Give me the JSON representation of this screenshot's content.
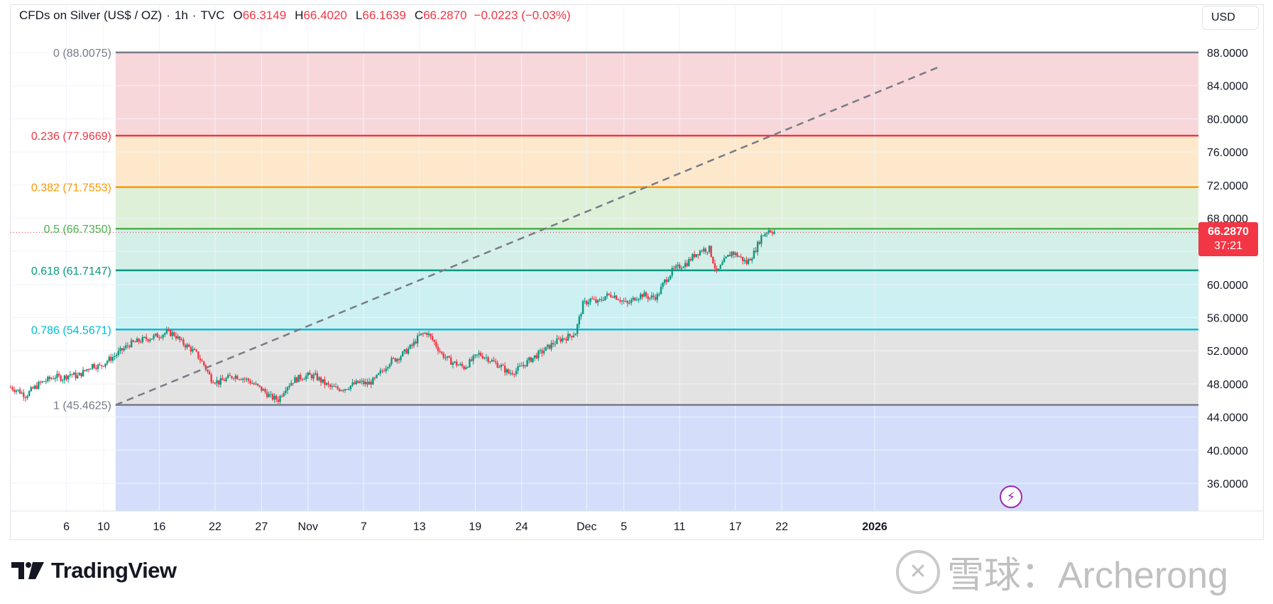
{
  "header": {
    "symbol": "CFDs on Silver (US$ / OZ)",
    "sep1": "·",
    "interval": "1h",
    "sep2": "·",
    "source": "TVC",
    "open_label": "O",
    "open": "66.3149",
    "high_label": "H",
    "high": "66.4020",
    "low_label": "L",
    "low": "66.1639",
    "close_label": "C",
    "close": "66.2870",
    "change": "−0.0223 (−0.03%)"
  },
  "currency_button": "USD",
  "price_tag": {
    "price": "66.2870",
    "countdown": "37:21"
  },
  "branding": {
    "logo_text": "TradingView",
    "watermark": "雪球：Archerong"
  },
  "colors": {
    "down": "#f23645",
    "up": "#089981",
    "trendline": "#787b86"
  },
  "chart_data": {
    "type": "candlestick",
    "title": "CFDs on Silver (US$ / OZ) · 1h · TVC",
    "y_axis": {
      "min": 33.0,
      "max": 90.0,
      "ticks": [
        "88.0000",
        "84.0000",
        "80.0000",
        "76.0000",
        "72.0000",
        "68.0000",
        "64.0000",
        "60.0000",
        "56.0000",
        "52.0000",
        "48.0000",
        "44.0000",
        "40.0000",
        "36.0000"
      ],
      "tick_values": [
        88,
        84,
        80,
        76,
        72,
        68,
        64,
        60,
        56,
        52,
        48,
        44,
        40,
        36
      ]
    },
    "x_axis": {
      "range": [
        0,
        128
      ],
      "labels": [
        {
          "text": "6",
          "x": 6
        },
        {
          "text": "10",
          "x": 10
        },
        {
          "text": "16",
          "x": 16
        },
        {
          "text": "22",
          "x": 22
        },
        {
          "text": "27",
          "x": 27
        },
        {
          "text": "Nov",
          "x": 32
        },
        {
          "text": "7",
          "x": 38
        },
        {
          "text": "13",
          "x": 44
        },
        {
          "text": "19",
          "x": 50
        },
        {
          "text": "24",
          "x": 55
        },
        {
          "text": "Dec",
          "x": 62
        },
        {
          "text": "5",
          "x": 66
        },
        {
          "text": "11",
          "x": 72
        },
        {
          "text": "17",
          "x": 78
        },
        {
          "text": "22",
          "x": 83
        },
        {
          "text": "2026",
          "x": 93
        }
      ]
    },
    "fibonacci": {
      "x_start": 11.3,
      "levels": [
        {
          "ratio": "0",
          "price": 88.0075,
          "label": "0 (88.0075)",
          "color": "#787b86",
          "fill": "#f8d7da"
        },
        {
          "ratio": "0.236",
          "price": 77.9669,
          "label": "0.236 (77.9669)",
          "color": "#f23645",
          "fill": "#fde8cc"
        },
        {
          "ratio": "0.382",
          "price": 71.7553,
          "label": "0.382 (71.7553)",
          "color": "#ff9800",
          "fill": "#dff0d8"
        },
        {
          "ratio": "0.5",
          "price": 66.735,
          "label": "0.5 (66.7350)",
          "color": "#4caf50",
          "fill": "#d3efe8"
        },
        {
          "ratio": "0.618",
          "price": 61.7147,
          "label": "0.618 (61.7147)",
          "color": "#089981",
          "fill": "#cdf0f3"
        },
        {
          "ratio": "0.786",
          "price": 54.5671,
          "label": "0.786 (54.5671)",
          "color": "#00bcd4",
          "fill": "#e3e3e3"
        },
        {
          "ratio": "1",
          "price": 45.4625,
          "label": "1 (45.4625)",
          "color": "#787b86",
          "fill": "#d4defa"
        }
      ]
    },
    "trendline": {
      "start": [
        11.3,
        45.46
      ],
      "end": [
        100,
        86.3
      ],
      "style": "dashed"
    },
    "close_points": [
      [
        0,
        47.6
      ],
      [
        0.8,
        47.2
      ],
      [
        1.6,
        46.6
      ],
      [
        2.4,
        47.4
      ],
      [
        3.2,
        48.1
      ],
      [
        4.0,
        48.5
      ],
      [
        4.8,
        48.9
      ],
      [
        5.6,
        48.7
      ],
      [
        6.4,
        49.2
      ],
      [
        7.2,
        48.9
      ],
      [
        8.0,
        49.6
      ],
      [
        8.8,
        50.3
      ],
      [
        9.6,
        50.1
      ],
      [
        10.4,
        50.8
      ],
      [
        11.2,
        51.4
      ],
      [
        12.0,
        52.1
      ],
      [
        12.8,
        52.8
      ],
      [
        13.6,
        53.1
      ],
      [
        14.4,
        53.4
      ],
      [
        15.2,
        53.6
      ],
      [
        16.0,
        53.9
      ],
      [
        16.8,
        54.2
      ],
      [
        17.6,
        54.0
      ],
      [
        18.4,
        53.0
      ],
      [
        19.2,
        52.4
      ],
      [
        20.0,
        51.6
      ],
      [
        20.8,
        50.3
      ],
      [
        21.6,
        48.6
      ],
      [
        22.4,
        48.2
      ],
      [
        23.2,
        48.6
      ],
      [
        24.0,
        49.0
      ],
      [
        24.8,
        48.8
      ],
      [
        25.6,
        48.4
      ],
      [
        26.4,
        47.8
      ],
      [
        27.2,
        47.2
      ],
      [
        28.0,
        46.4
      ],
      [
        28.8,
        46.1
      ],
      [
        29.6,
        47.6
      ],
      [
        30.4,
        48.4
      ],
      [
        31.2,
        48.8
      ],
      [
        32.0,
        49.0
      ],
      [
        32.8,
        48.9
      ],
      [
        33.6,
        48.2
      ],
      [
        34.4,
        47.6
      ],
      [
        35.2,
        47.4
      ],
      [
        36.0,
        47.5
      ],
      [
        36.8,
        47.9
      ],
      [
        37.6,
        48.2
      ],
      [
        38.4,
        48.0
      ],
      [
        39.2,
        48.5
      ],
      [
        40.0,
        49.6
      ],
      [
        40.8,
        50.7
      ],
      [
        41.6,
        51.1
      ],
      [
        42.4,
        51.8
      ],
      [
        43.2,
        52.6
      ],
      [
        44.0,
        53.8
      ],
      [
        44.8,
        54.2
      ],
      [
        45.6,
        53.0
      ],
      [
        46.4,
        51.6
      ],
      [
        47.2,
        50.8
      ],
      [
        48.0,
        50.4
      ],
      [
        48.8,
        50.0
      ],
      [
        49.6,
        50.8
      ],
      [
        50.4,
        51.6
      ],
      [
        51.2,
        51.2
      ],
      [
        52.0,
        50.6
      ],
      [
        52.8,
        50.1
      ],
      [
        53.6,
        49.3
      ],
      [
        54.4,
        49.6
      ],
      [
        55.2,
        50.3
      ],
      [
        56.0,
        51.0
      ],
      [
        56.8,
        51.6
      ],
      [
        57.6,
        52.2
      ],
      [
        58.4,
        52.9
      ],
      [
        59.2,
        53.4
      ],
      [
        60.0,
        53.7
      ],
      [
        60.8,
        54.2
      ],
      [
        61.6,
        57.6
      ],
      [
        62.4,
        58.2
      ],
      [
        63.2,
        57.8
      ],
      [
        64.0,
        58.6
      ],
      [
        64.8,
        58.8
      ],
      [
        65.6,
        58.2
      ],
      [
        66.4,
        57.6
      ],
      [
        67.2,
        58.4
      ],
      [
        68.0,
        58.8
      ],
      [
        68.8,
        58.4
      ],
      [
        69.6,
        58.6
      ],
      [
        70.4,
        60.4
      ],
      [
        71.2,
        61.6
      ],
      [
        72.0,
        62.2
      ],
      [
        72.8,
        62.6
      ],
      [
        73.6,
        63.6
      ],
      [
        74.4,
        64.2
      ],
      [
        75.2,
        64.3
      ],
      [
        76.0,
        61.4
      ],
      [
        76.8,
        62.8
      ],
      [
        77.6,
        63.9
      ],
      [
        78.4,
        63.4
      ],
      [
        79.2,
        62.6
      ],
      [
        80.0,
        63.8
      ],
      [
        80.8,
        65.8
      ],
      [
        81.6,
        66.6
      ],
      [
        82.4,
        66.29
      ]
    ]
  }
}
